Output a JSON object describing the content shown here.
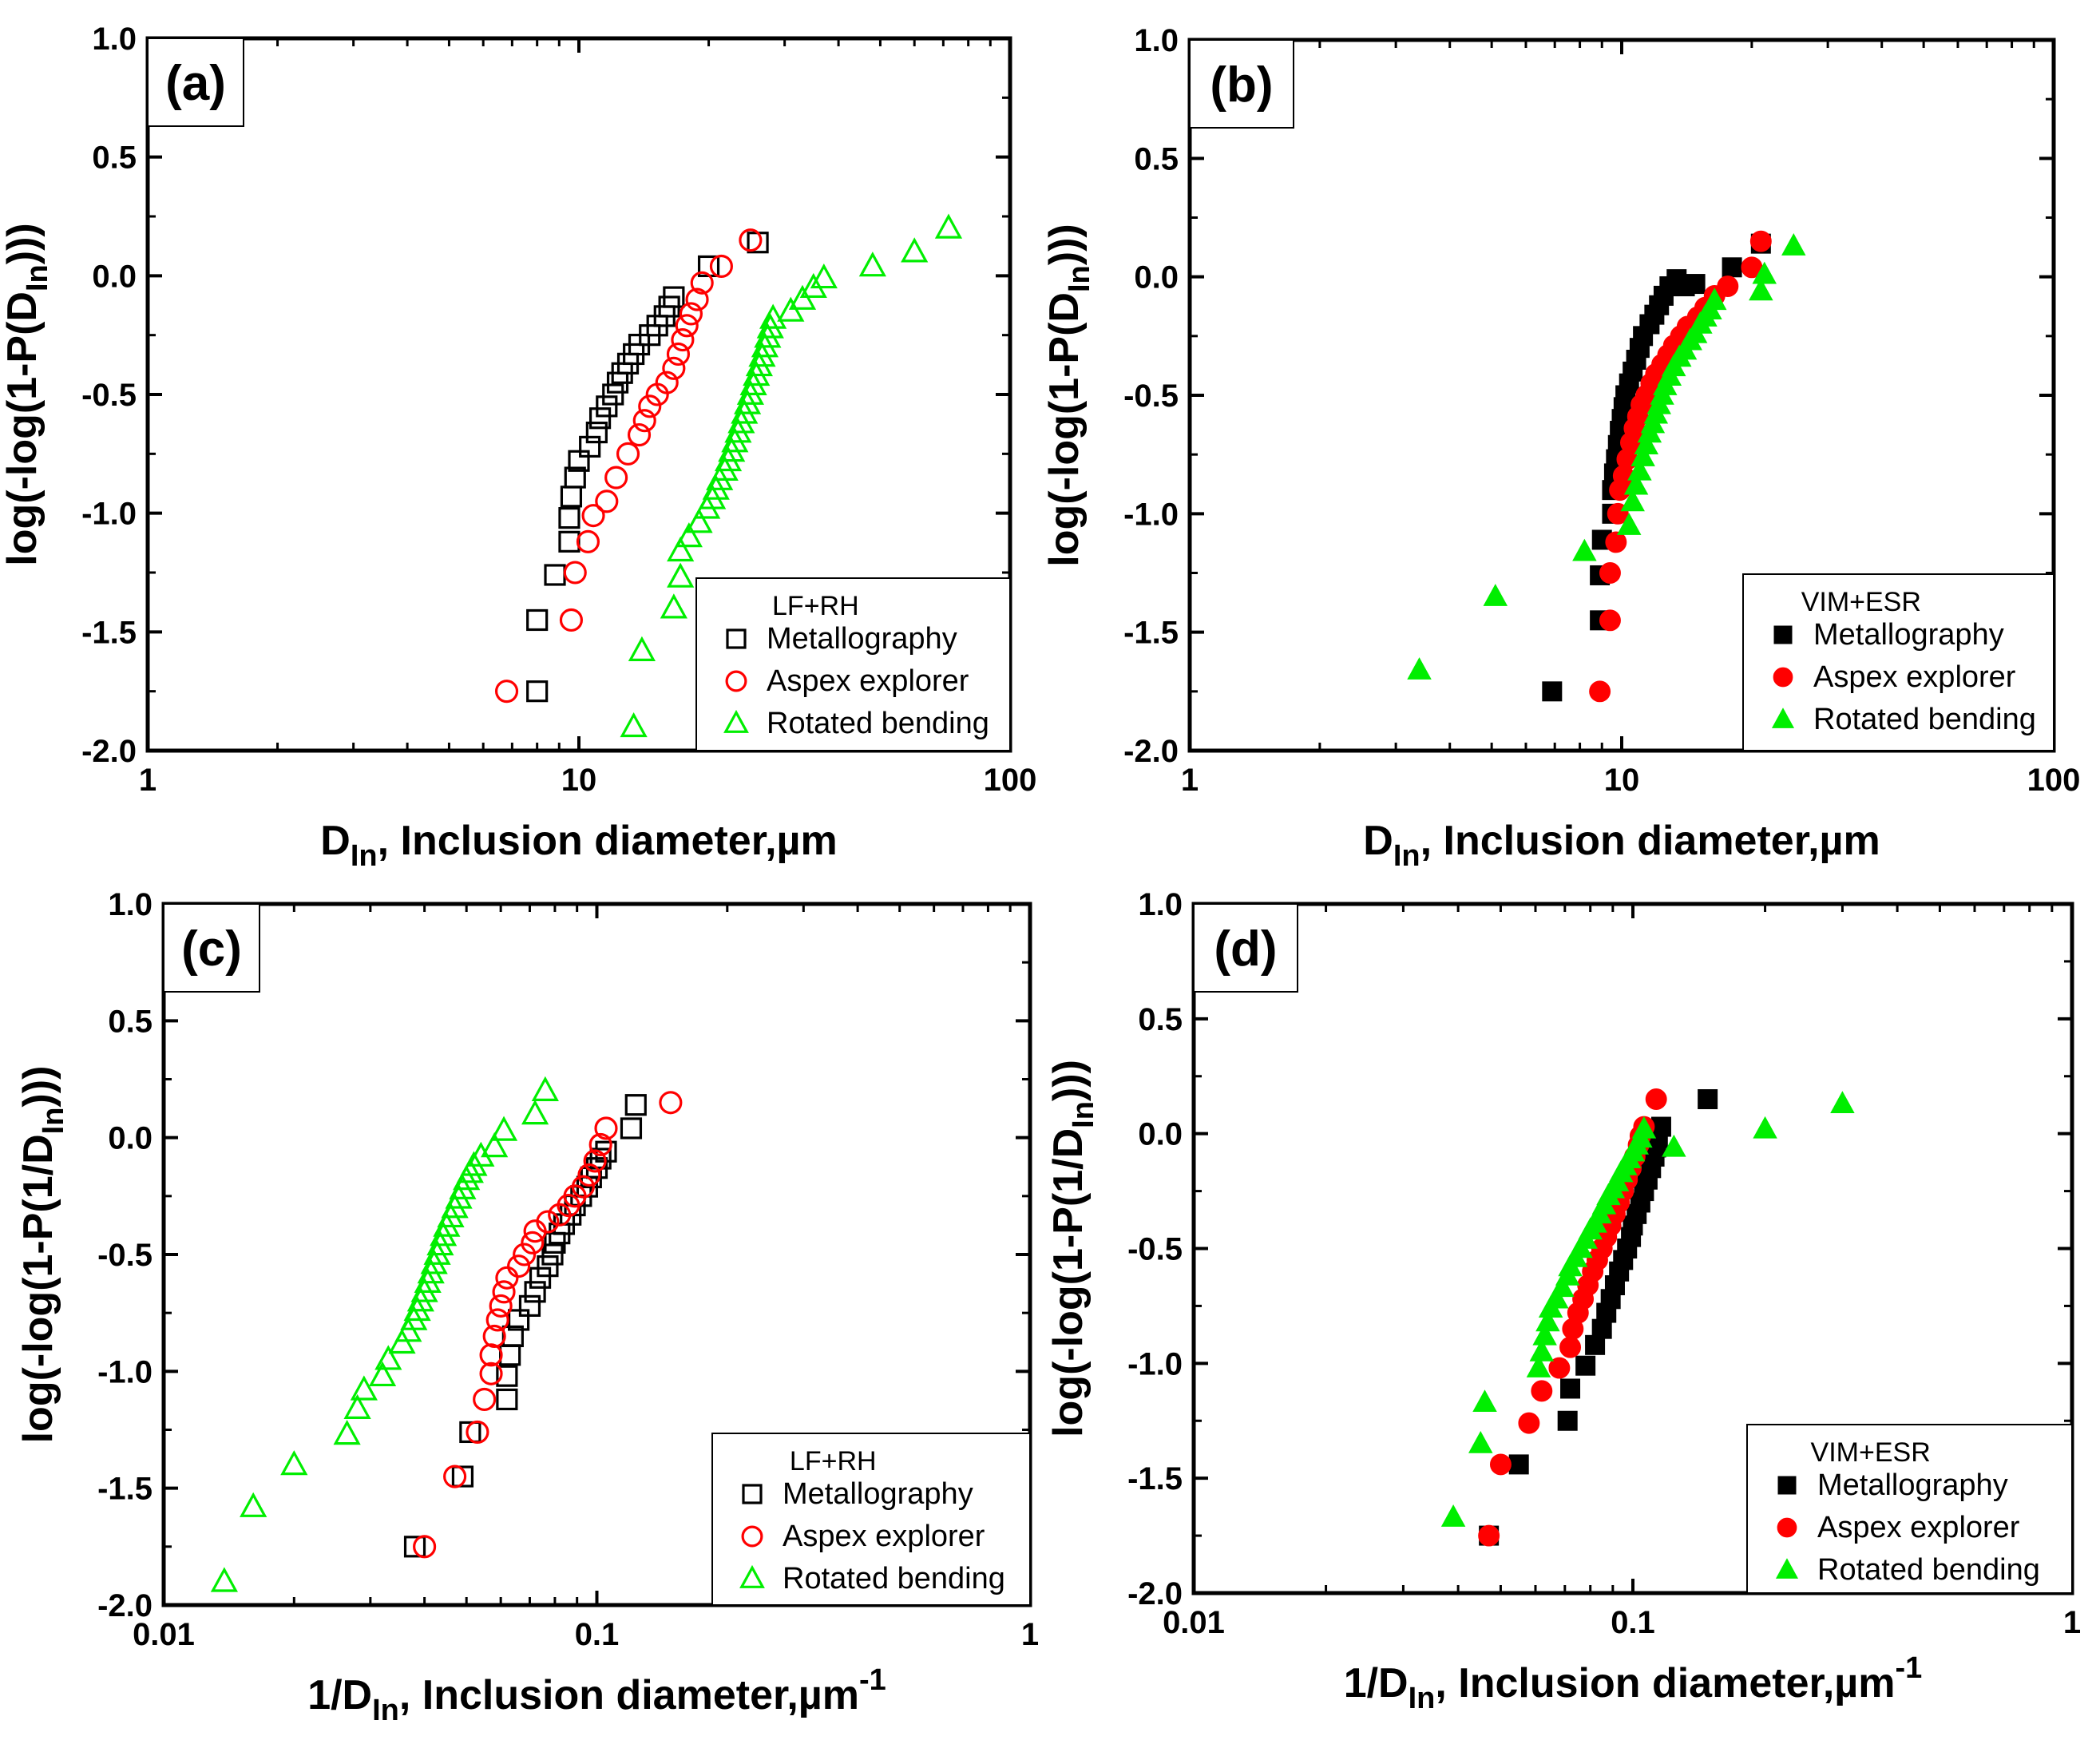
{
  "colors": {
    "metallography": "#000000",
    "aspex": "#ff0000",
    "bending": "#00ee00"
  },
  "chart_data": [
    {
      "type": "scatter",
      "panel_label": "(a)",
      "title": "",
      "xlabel": {
        "main": "D",
        "sub": "In",
        "rest": ", Inclusion diameter,µm",
        "sup": ""
      },
      "ylabel": {
        "main": "log(-log(1-P(D",
        "sub": "In",
        "rest": ")))"
      },
      "xscale": "log",
      "xlim": [
        1,
        100
      ],
      "ylim": [
        -2.0,
        1.0
      ],
      "xticks": [
        1,
        10,
        100
      ],
      "xtick_labels": [
        "1",
        "10",
        "100"
      ],
      "yticks": [
        1.0,
        0.5,
        0.0,
        -0.5,
        -1.0,
        -1.5,
        -2.0
      ],
      "ytick_labels": [
        "1.0",
        "0.5",
        "0.0",
        "-0.5",
        "-1.0",
        "-1.5",
        "-2.0"
      ],
      "markers": "open",
      "legend": {
        "title": "LF+RH",
        "position": "bottom-right"
      },
      "series": [
        {
          "name": "Metallography",
          "key": "metallography",
          "shape": "square",
          "x": [
            8.0,
            8.0,
            8.8,
            9.5,
            9.5,
            9.6,
            9.8,
            10.0,
            10.6,
            11.0,
            11.2,
            11.6,
            12.0,
            12.3,
            12.6,
            13.0,
            13.4,
            13.8,
            14.6,
            15.2,
            15.8,
            16.2,
            16.6,
            20.0,
            26.0
          ],
          "y": [
            -1.75,
            -1.45,
            -1.26,
            -1.12,
            -1.02,
            -0.93,
            -0.85,
            -0.78,
            -0.72,
            -0.66,
            -0.6,
            -0.55,
            -0.5,
            -0.45,
            -0.41,
            -0.37,
            -0.33,
            -0.29,
            -0.25,
            -0.21,
            -0.17,
            -0.13,
            -0.09,
            0.04,
            0.14
          ]
        },
        {
          "name": "Aspex explorer",
          "key": "aspex",
          "shape": "circle",
          "x": [
            6.8,
            9.6,
            9.8,
            10.5,
            10.8,
            11.6,
            12.2,
            13.0,
            13.8,
            14.2,
            14.6,
            15.2,
            16.0,
            16.6,
            17.0,
            17.4,
            17.8,
            18.2,
            18.8,
            19.3,
            21.4,
            25.0
          ],
          "y": [
            -1.75,
            -1.45,
            -1.25,
            -1.12,
            -1.01,
            -0.95,
            -0.85,
            -0.75,
            -0.67,
            -0.61,
            -0.55,
            -0.5,
            -0.45,
            -0.39,
            -0.33,
            -0.27,
            -0.21,
            -0.16,
            -0.1,
            -0.03,
            0.04,
            0.15
          ]
        },
        {
          "name": "Rotated bending",
          "key": "bending",
          "shape": "triangle",
          "x": [
            13.4,
            14.0,
            16.6,
            17.2,
            17.2,
            18.0,
            19.0,
            19.8,
            20.4,
            20.8,
            21.2,
            21.8,
            22.2,
            22.6,
            23.0,
            23.4,
            23.8,
            24.2,
            24.6,
            25.0,
            25.4,
            25.8,
            26.2,
            26.6,
            27.0,
            27.4,
            27.8,
            28.2,
            31.0,
            33.0,
            35.0,
            37.0,
            48.0,
            60.0,
            72.0
          ],
          "y": [
            -1.9,
            -1.58,
            -1.4,
            -1.27,
            -1.16,
            -1.1,
            -1.04,
            -0.98,
            -0.94,
            -0.9,
            -0.86,
            -0.82,
            -0.78,
            -0.74,
            -0.7,
            -0.66,
            -0.62,
            -0.58,
            -0.54,
            -0.5,
            -0.46,
            -0.42,
            -0.38,
            -0.34,
            -0.3,
            -0.26,
            -0.22,
            -0.18,
            -0.15,
            -0.1,
            -0.05,
            -0.01,
            0.04,
            0.1,
            0.2
          ]
        }
      ]
    },
    {
      "type": "scatter",
      "panel_label": "(b)",
      "title": "",
      "xlabel": {
        "main": "D",
        "sub": "In",
        "rest": ", Inclusion diameter,µm",
        "sup": ""
      },
      "ylabel": {
        "main": "log(-log(1-P(D",
        "sub": "In",
        "rest": ")))"
      },
      "xscale": "log",
      "xlim": [
        1,
        100
      ],
      "ylim": [
        -2.0,
        1.0
      ],
      "xticks": [
        1,
        10,
        100
      ],
      "xtick_labels": [
        "1",
        "10",
        "100"
      ],
      "yticks": [
        1.0,
        0.5,
        0.0,
        -0.5,
        -1.0,
        -1.5,
        -2.0
      ],
      "ytick_labels": [
        "1.0",
        "0.5",
        "0.0",
        "-0.5",
        "-1.0",
        "-1.5",
        "-2.0"
      ],
      "markers": "filled",
      "legend": {
        "title": "VIM+ESR",
        "position": "bottom-right"
      },
      "series": [
        {
          "name": "Metallography",
          "key": "metallography",
          "shape": "square",
          "x": [
            6.9,
            8.9,
            8.9,
            9.0,
            9.5,
            9.5,
            9.6,
            9.7,
            9.8,
            9.9,
            10.0,
            10.1,
            10.2,
            10.4,
            10.6,
            10.8,
            11.0,
            11.2,
            11.6,
            11.9,
            12.2,
            12.5,
            12.9,
            13.4,
            14.0,
            14.8,
            18.0,
            21.0
          ],
          "y": [
            -1.75,
            -1.45,
            -1.26,
            -1.11,
            -1.0,
            -0.9,
            -0.83,
            -0.77,
            -0.71,
            -0.65,
            -0.6,
            -0.55,
            -0.5,
            -0.45,
            -0.4,
            -0.35,
            -0.3,
            -0.25,
            -0.2,
            -0.16,
            -0.12,
            -0.08,
            -0.04,
            -0.01,
            -0.04,
            -0.03,
            0.04,
            0.14
          ]
        },
        {
          "name": "Aspex explorer",
          "key": "aspex",
          "shape": "circle",
          "x": [
            8.9,
            9.4,
            9.4,
            9.7,
            9.8,
            9.9,
            10.1,
            10.3,
            10.5,
            10.7,
            10.9,
            11.1,
            11.4,
            11.7,
            12.0,
            12.4,
            12.8,
            13.2,
            13.7,
            14.2,
            15.0,
            15.6,
            16.4,
            17.6,
            20.0,
            21.0
          ],
          "y": [
            -1.75,
            -1.45,
            -1.25,
            -1.12,
            -1.0,
            -0.9,
            -0.84,
            -0.77,
            -0.7,
            -0.64,
            -0.59,
            -0.54,
            -0.5,
            -0.45,
            -0.41,
            -0.37,
            -0.33,
            -0.29,
            -0.25,
            -0.21,
            -0.17,
            -0.13,
            -0.08,
            -0.04,
            0.04,
            0.15
          ]
        },
        {
          "name": "Rotated bending",
          "key": "bending",
          "shape": "triangle",
          "x": [
            3.4,
            5.1,
            8.2,
            10.4,
            10.6,
            10.8,
            11.0,
            11.2,
            11.4,
            11.6,
            11.8,
            12.0,
            12.2,
            12.4,
            12.6,
            12.9,
            13.2,
            13.6,
            14.0,
            14.4,
            14.8,
            15.2,
            15.6,
            16.0,
            16.4,
            21.0,
            21.4,
            25.0
          ],
          "y": [
            -1.66,
            -1.35,
            -1.16,
            -1.05,
            -0.95,
            -0.88,
            -0.82,
            -0.76,
            -0.71,
            -0.66,
            -0.62,
            -0.58,
            -0.54,
            -0.5,
            -0.46,
            -0.42,
            -0.38,
            -0.34,
            -0.31,
            -0.27,
            -0.24,
            -0.2,
            -0.17,
            -0.14,
            -0.1,
            -0.06,
            0.01,
            0.13
          ]
        }
      ]
    },
    {
      "type": "scatter",
      "panel_label": "(c)",
      "title": "",
      "xlabel": {
        "main": "1/D",
        "sub": "In",
        "rest": ", Inclusion diameter,µm",
        "sup": "-1"
      },
      "ylabel": {
        "main": "log(-log(1-P(1/D",
        "sub": "In",
        "rest": ")))"
      },
      "xscale": "log",
      "xlim": [
        0.01,
        1
      ],
      "ylim": [
        -2.0,
        1.0
      ],
      "xticks": [
        0.01,
        0.1,
        1
      ],
      "xtick_labels": [
        "0.01",
        "0.1",
        "1"
      ],
      "yticks": [
        1.0,
        0.5,
        0.0,
        -0.5,
        -1.0,
        -1.5,
        -2.0
      ],
      "ytick_labels": [
        "1.0",
        "0.5",
        "0.0",
        "-0.5",
        "-1.0",
        "-1.5",
        "-2.0"
      ],
      "markers": "open",
      "legend": {
        "title": "LF+RH",
        "position": "bottom-right"
      },
      "series": [
        {
          "name": "Metallography",
          "key": "metallography",
          "shape": "square",
          "x": [
            0.038,
            0.049,
            0.051,
            0.062,
            0.062,
            0.063,
            0.064,
            0.066,
            0.07,
            0.072,
            0.074,
            0.077,
            0.079,
            0.08,
            0.082,
            0.084,
            0.087,
            0.089,
            0.092,
            0.095,
            0.097,
            0.1,
            0.102,
            0.105,
            0.12,
            0.123
          ],
          "y": [
            -1.75,
            -1.45,
            -1.26,
            -1.12,
            -1.02,
            -0.93,
            -0.85,
            -0.78,
            -0.72,
            -0.66,
            -0.6,
            -0.55,
            -0.5,
            -0.45,
            -0.41,
            -0.37,
            -0.33,
            -0.29,
            -0.25,
            -0.21,
            -0.17,
            -0.13,
            -0.09,
            -0.06,
            0.04,
            0.14
          ]
        },
        {
          "name": "Aspex explorer",
          "key": "aspex",
          "shape": "circle",
          "x": [
            0.04,
            0.047,
            0.053,
            0.055,
            0.057,
            0.057,
            0.058,
            0.059,
            0.06,
            0.061,
            0.062,
            0.066,
            0.068,
            0.071,
            0.072,
            0.077,
            0.082,
            0.086,
            0.089,
            0.093,
            0.096,
            0.099,
            0.102,
            0.105,
            0.148
          ],
          "y": [
            -1.75,
            -1.45,
            -1.26,
            -1.12,
            -1.01,
            -0.93,
            -0.85,
            -0.78,
            -0.72,
            -0.66,
            -0.6,
            -0.55,
            -0.5,
            -0.45,
            -0.4,
            -0.36,
            -0.33,
            -0.29,
            -0.25,
            -0.21,
            -0.16,
            -0.1,
            -0.03,
            0.04,
            0.15
          ]
        },
        {
          "name": "Rotated bending",
          "key": "bending",
          "shape": "triangle",
          "x": [
            0.0138,
            0.0161,
            0.02,
            0.0265,
            0.028,
            0.029,
            0.032,
            0.033,
            0.0355,
            0.0367,
            0.0378,
            0.0385,
            0.0392,
            0.04,
            0.0407,
            0.0414,
            0.0421,
            0.0428,
            0.0435,
            0.0442,
            0.045,
            0.046,
            0.047,
            0.048,
            0.049,
            0.05,
            0.051,
            0.052,
            0.054,
            0.058,
            0.061,
            0.072,
            0.076
          ],
          "y": [
            -1.9,
            -1.58,
            -1.4,
            -1.27,
            -1.16,
            -1.08,
            -1.02,
            -0.95,
            -0.88,
            -0.83,
            -0.78,
            -0.74,
            -0.7,
            -0.66,
            -0.62,
            -0.58,
            -0.54,
            -0.5,
            -0.46,
            -0.42,
            -0.38,
            -0.34,
            -0.3,
            -0.26,
            -0.22,
            -0.18,
            -0.15,
            -0.12,
            -0.08,
            -0.04,
            0.03,
            0.1,
            0.2
          ]
        }
      ]
    },
    {
      "type": "scatter",
      "panel_label": "(d)",
      "title": "",
      "xlabel": {
        "main": "1/D",
        "sub": "In",
        "rest": ", Inclusion diameter,µm",
        "sup": "-1"
      },
      "ylabel": {
        "main": "log(-log(1-P(1/D",
        "sub": "In",
        "rest": ")))"
      },
      "xscale": "log",
      "xlim": [
        0.01,
        1
      ],
      "ylim": [
        -2.0,
        1.0
      ],
      "xticks": [
        0.01,
        0.1,
        1
      ],
      "xtick_labels": [
        "0.01",
        "0.1",
        "1"
      ],
      "yticks": [
        1.0,
        0.5,
        0.0,
        -0.5,
        -1.0,
        -1.5,
        -2.0
      ],
      "ytick_labels": [
        "1.0",
        "0.5",
        "0.0",
        "-0.5",
        "-1.0",
        "-1.5",
        "-2.0"
      ],
      "markers": "filled",
      "legend": {
        "title": "VIM+ESR",
        "position": "bottom-right"
      },
      "series": [
        {
          "name": "Metallography",
          "key": "metallography",
          "shape": "square",
          "x": [
            0.047,
            0.055,
            0.071,
            0.072,
            0.078,
            0.082,
            0.085,
            0.087,
            0.089,
            0.091,
            0.093,
            0.095,
            0.097,
            0.099,
            0.1,
            0.102,
            0.104,
            0.106,
            0.108,
            0.11,
            0.112,
            0.113,
            0.114,
            0.116,
            0.148
          ],
          "y": [
            -1.75,
            -1.44,
            -1.25,
            -1.11,
            -1.01,
            -0.92,
            -0.85,
            -0.78,
            -0.72,
            -0.66,
            -0.6,
            -0.55,
            -0.5,
            -0.45,
            -0.4,
            -0.35,
            -0.3,
            -0.25,
            -0.2,
            -0.15,
            -0.1,
            -0.06,
            -0.02,
            0.03,
            0.15
          ]
        },
        {
          "name": "Aspex explorer",
          "key": "aspex",
          "shape": "circle",
          "x": [
            0.047,
            0.05,
            0.058,
            0.062,
            0.068,
            0.072,
            0.073,
            0.075,
            0.077,
            0.079,
            0.081,
            0.083,
            0.085,
            0.087,
            0.089,
            0.091,
            0.093,
            0.095,
            0.097,
            0.099,
            0.101,
            0.103,
            0.104,
            0.106,
            0.113
          ],
          "y": [
            -1.75,
            -1.44,
            -1.26,
            -1.12,
            -1.02,
            -0.93,
            -0.85,
            -0.78,
            -0.72,
            -0.66,
            -0.6,
            -0.55,
            -0.5,
            -0.45,
            -0.4,
            -0.35,
            -0.3,
            -0.25,
            -0.2,
            -0.15,
            -0.1,
            -0.05,
            -0.01,
            0.03,
            0.15
          ]
        },
        {
          "name": "Rotated bending",
          "key": "bending",
          "shape": "triangle",
          "x": [
            0.039,
            0.045,
            0.046,
            0.061,
            0.062,
            0.063,
            0.064,
            0.065,
            0.067,
            0.069,
            0.071,
            0.072,
            0.074,
            0.076,
            0.078,
            0.08,
            0.082,
            0.084,
            0.086,
            0.088,
            0.09,
            0.092,
            0.094,
            0.096,
            0.098,
            0.1,
            0.102,
            0.104,
            0.106,
            0.124,
            0.2,
            0.3
          ],
          "y": [
            -1.67,
            -1.35,
            -1.17,
            -1.02,
            -0.95,
            -0.88,
            -0.82,
            -0.76,
            -0.72,
            -0.67,
            -0.62,
            -0.58,
            -0.54,
            -0.5,
            -0.46,
            -0.42,
            -0.39,
            -0.35,
            -0.31,
            -0.27,
            -0.24,
            -0.21,
            -0.17,
            -0.14,
            -0.11,
            -0.08,
            -0.05,
            -0.02,
            0.02,
            -0.06,
            0.02,
            0.13
          ]
        }
      ]
    }
  ]
}
